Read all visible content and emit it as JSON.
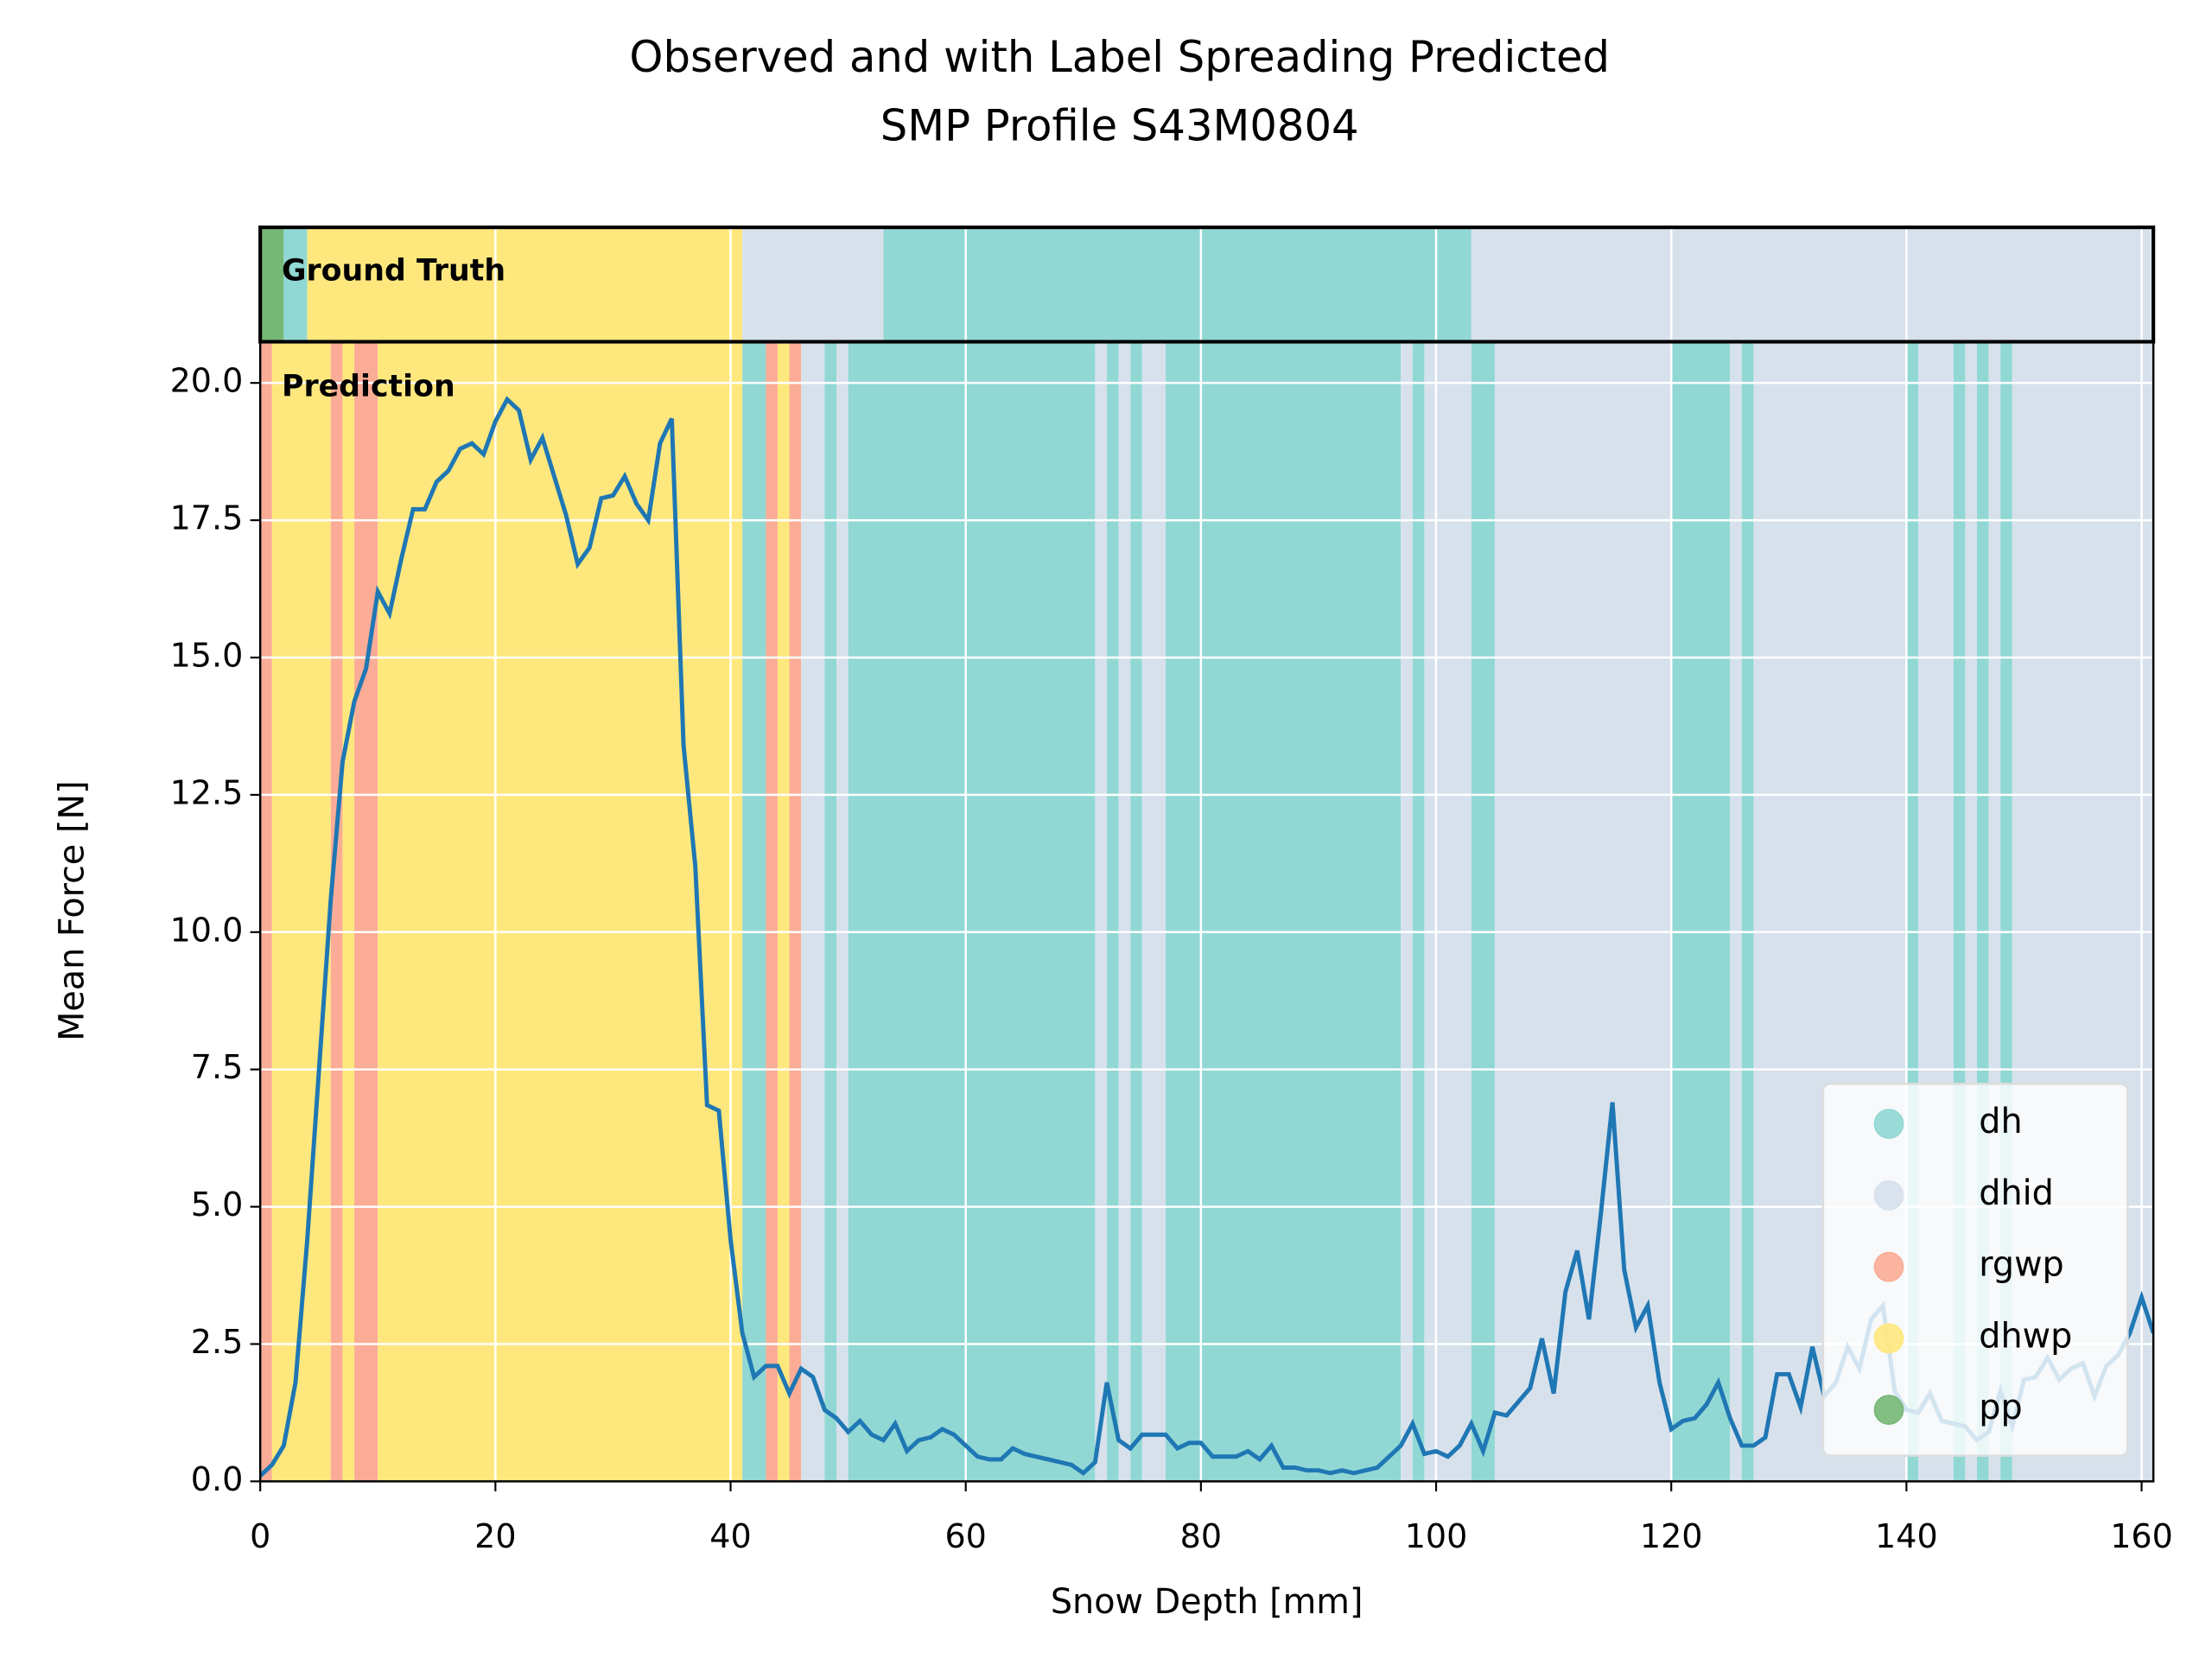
{
  "chart_data": {
    "type": "line",
    "title": "Observed and with Label Spreading Predicted",
    "subtitle": "SMP Profile S43M0804",
    "xlabel": "Snow Depth [mm]",
    "ylabel": "Mean Force [N]",
    "xlim": [
      0,
      161
    ],
    "ylim": [
      0,
      20.75
    ],
    "xticks": [
      0,
      20,
      40,
      60,
      80,
      100,
      120,
      140,
      160
    ],
    "yticks": [
      {
        "value": 0,
        "label": "0.0"
      },
      2.5,
      {
        "value": 5,
        "label": "5.0"
      },
      7.5,
      {
        "value": 10,
        "label": "10.0"
      },
      12.5,
      {
        "value": 15,
        "label": "15.0"
      },
      17.5,
      {
        "value": 20,
        "label": "20.0"
      }
    ],
    "grid": true,
    "legend_position": "lower right",
    "annotations": [
      "Ground Truth",
      "Prediction"
    ],
    "classes": [
      {
        "name": "dh",
        "color": "#91d8d4"
      },
      {
        "name": "dhid",
        "color": "#d7e1ec"
      },
      {
        "name": "rgwp",
        "color": "#fbac96"
      },
      {
        "name": "dhwp",
        "color": "#fee87e"
      },
      {
        "name": "pp",
        "color": "#76b876"
      }
    ],
    "ground_truth": [
      {
        "start": 0,
        "end": 2,
        "label": "pp"
      },
      {
        "start": 2,
        "end": 4,
        "label": "dh"
      },
      {
        "start": 4,
        "end": 41,
        "label": "dhwp"
      },
      {
        "start": 41,
        "end": 53,
        "label": "dhid"
      },
      {
        "start": 53,
        "end": 103,
        "label": "dh"
      },
      {
        "start": 103,
        "end": 161,
        "label": "dhid"
      }
    ],
    "prediction": [
      {
        "start": 0,
        "end": 1,
        "label": "rgwp"
      },
      {
        "start": 1,
        "end": 6,
        "label": "dhwp"
      },
      {
        "start": 6,
        "end": 7,
        "label": "rgwp"
      },
      {
        "start": 7,
        "end": 8,
        "label": "dhwp"
      },
      {
        "start": 8,
        "end": 10,
        "label": "rgwp"
      },
      {
        "start": 10,
        "end": 41,
        "label": "dhwp"
      },
      {
        "start": 41,
        "end": 43,
        "label": "dh"
      },
      {
        "start": 43,
        "end": 44,
        "label": "rgwp"
      },
      {
        "start": 44,
        "end": 45,
        "label": "dhwp"
      },
      {
        "start": 45,
        "end": 46,
        "label": "rgwp"
      },
      {
        "start": 46,
        "end": 48,
        "label": "dhid"
      },
      {
        "start": 48,
        "end": 49,
        "label": "dh"
      },
      {
        "start": 49,
        "end": 50,
        "label": "dhid"
      },
      {
        "start": 50,
        "end": 71,
        "label": "dh"
      },
      {
        "start": 71,
        "end": 72,
        "label": "dhid"
      },
      {
        "start": 72,
        "end": 73,
        "label": "dh"
      },
      {
        "start": 73,
        "end": 74,
        "label": "dhid"
      },
      {
        "start": 74,
        "end": 75,
        "label": "dh"
      },
      {
        "start": 75,
        "end": 77,
        "label": "dhid"
      },
      {
        "start": 77,
        "end": 97,
        "label": "dh"
      },
      {
        "start": 97,
        "end": 98,
        "label": "dhid"
      },
      {
        "start": 98,
        "end": 99,
        "label": "dh"
      },
      {
        "start": 99,
        "end": 103,
        "label": "dhid"
      },
      {
        "start": 103,
        "end": 105,
        "label": "dh"
      },
      {
        "start": 105,
        "end": 120,
        "label": "dhid"
      },
      {
        "start": 120,
        "end": 125,
        "label": "dh"
      },
      {
        "start": 125,
        "end": 126,
        "label": "dhid"
      },
      {
        "start": 126,
        "end": 127,
        "label": "dh"
      },
      {
        "start": 127,
        "end": 140,
        "label": "dhid"
      },
      {
        "start": 140,
        "end": 141,
        "label": "dh"
      },
      {
        "start": 141,
        "end": 144,
        "label": "dhid"
      },
      {
        "start": 144,
        "end": 145,
        "label": "dh"
      },
      {
        "start": 145,
        "end": 146,
        "label": "dhid"
      },
      {
        "start": 146,
        "end": 147,
        "label": "dh"
      },
      {
        "start": 147,
        "end": 148,
        "label": "dhid"
      },
      {
        "start": 148,
        "end": 149,
        "label": "dh"
      },
      {
        "start": 149,
        "end": 161,
        "label": "dhid"
      }
    ],
    "x": [
      0,
      1,
      2,
      3,
      4,
      5,
      6,
      7,
      8,
      9,
      10,
      11,
      12,
      13,
      14,
      15,
      16,
      17,
      18,
      19,
      20,
      21,
      22,
      23,
      24,
      25,
      26,
      27,
      28,
      29,
      30,
      31,
      32,
      33,
      34,
      35,
      36,
      37,
      38,
      39,
      40,
      41,
      42,
      43,
      44,
      45,
      46,
      47,
      48,
      49,
      50,
      51,
      52,
      53,
      54,
      55,
      56,
      57,
      58,
      59,
      60,
      61,
      62,
      63,
      64,
      65,
      66,
      67,
      68,
      69,
      70,
      71,
      72,
      73,
      74,
      75,
      76,
      77,
      78,
      79,
      80,
      81,
      82,
      83,
      84,
      85,
      86,
      87,
      88,
      89,
      90,
      91,
      92,
      93,
      94,
      95,
      96,
      97,
      98,
      99,
      100,
      101,
      102,
      103,
      104,
      105,
      106,
      107,
      108,
      109,
      110,
      111,
      112,
      113,
      114,
      115,
      116,
      117,
      118,
      119,
      120,
      121,
      122,
      123,
      124,
      125,
      126,
      127,
      128,
      129,
      130,
      131,
      132,
      133,
      134,
      135,
      136,
      137,
      138,
      139,
      140,
      141,
      142,
      143,
      144,
      145,
      146,
      147,
      148,
      149,
      150,
      151,
      152,
      153,
      154,
      155,
      156,
      157,
      158,
      159,
      160,
      161
    ],
    "series": [
      {
        "color": "#1f77b4",
        "values": [
          0.1,
          0.3,
          0.65,
          1.8,
          4.4,
          7.5,
          10.6,
          13.1,
          14.2,
          14.8,
          16.2,
          15.8,
          16.8,
          17.7,
          17.7,
          18.2,
          18.4,
          18.8,
          18.9,
          18.7,
          19.3,
          19.7,
          19.5,
          18.6,
          19.0,
          18.3,
          17.6,
          16.7,
          17.0,
          17.9,
          17.95,
          18.3,
          17.8,
          17.5,
          18.9,
          19.35,
          13.4,
          11.2,
          6.85,
          6.75,
          4.4,
          2.7,
          1.9,
          2.1,
          2.1,
          1.6,
          2.05,
          1.9,
          1.3,
          1.15,
          0.9,
          1.1,
          0.85,
          0.75,
          1.05,
          0.55,
          0.75,
          0.8,
          0.95,
          0.85,
          0.65,
          0.45,
          0.4,
          0.4,
          0.6,
          0.5,
          0.45,
          0.4,
          0.35,
          0.3,
          0.15,
          0.35,
          1.8,
          0.75,
          0.6,
          0.85,
          0.85,
          0.85,
          0.6,
          0.7,
          0.7,
          0.45,
          0.45,
          0.45,
          0.55,
          0.4,
          0.65,
          0.25,
          0.25,
          0.2,
          0.2,
          0.15,
          0.2,
          0.15,
          0.2,
          0.25,
          0.45,
          0.65,
          1.05,
          0.5,
          0.55,
          0.45,
          0.65,
          1.05,
          0.55,
          1.25,
          1.2,
          1.45,
          1.7,
          2.6,
          1.6,
          3.45,
          4.2,
          2.95,
          4.85,
          6.9,
          3.85,
          2.8,
          3.2,
          1.8,
          0.95,
          1.1,
          1.15,
          1.4,
          1.8,
          1.15,
          0.65,
          0.65,
          0.8,
          1.95,
          1.95,
          1.35,
          2.45,
          1.55,
          1.8,
          2.45,
          2.05,
          2.95,
          3.2,
          1.65,
          1.3,
          1.25,
          1.6,
          1.1,
          1.05,
          1.0,
          0.75,
          0.9,
          1.65,
          1.0,
          1.85,
          1.9,
          2.25,
          1.85,
          2.05,
          2.15,
          1.55,
          2.1,
          2.3,
          2.7,
          3.35,
          2.7
        ]
      }
    ]
  }
}
